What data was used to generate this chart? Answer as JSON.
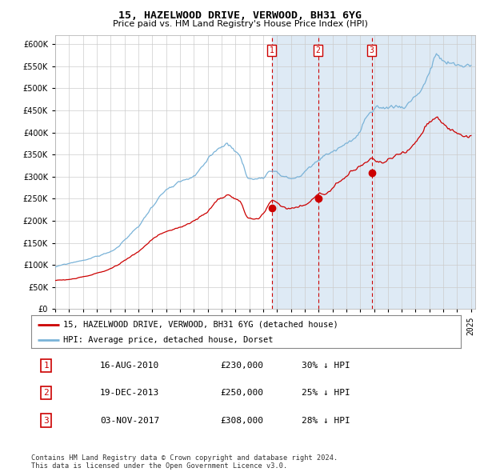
{
  "title": "15, HAZELWOOD DRIVE, VERWOOD, BH31 6YG",
  "subtitle": "Price paid vs. HM Land Registry's House Price Index (HPI)",
  "hpi_color": "#7ab3d8",
  "price_color": "#cc0000",
  "shade_color": "#deeaf5",
  "grid_color": "#cccccc",
  "ylim": [
    0,
    620000
  ],
  "yticks": [
    0,
    50000,
    100000,
    150000,
    200000,
    250000,
    300000,
    350000,
    400000,
    450000,
    500000,
    550000,
    600000
  ],
  "xlim_start": 1995.0,
  "xlim_end": 2025.3,
  "transactions": [
    {
      "date_dec": 2010.621,
      "price": 230000,
      "label": "1"
    },
    {
      "date_dec": 2013.964,
      "price": 250000,
      "label": "2"
    },
    {
      "date_dec": 2017.838,
      "price": 308000,
      "label": "3"
    }
  ],
  "table_entries": [
    {
      "num": "1",
      "date": "16-AUG-2010",
      "price": "£230,000",
      "pct": "30% ↓ HPI"
    },
    {
      "num": "2",
      "date": "19-DEC-2013",
      "price": "£250,000",
      "pct": "25% ↓ HPI"
    },
    {
      "num": "3",
      "date": "03-NOV-2017",
      "price": "£308,000",
      "pct": "28% ↓ HPI"
    }
  ],
  "legend_line1": "15, HAZELWOOD DRIVE, VERWOOD, BH31 6YG (detached house)",
  "legend_line2": "HPI: Average price, detached house, Dorset",
  "copyright_text": "Contains HM Land Registry data © Crown copyright and database right 2024.\nThis data is licensed under the Open Government Licence v3.0.",
  "shade_start": 2010.621,
  "shade_end": 2025.3
}
